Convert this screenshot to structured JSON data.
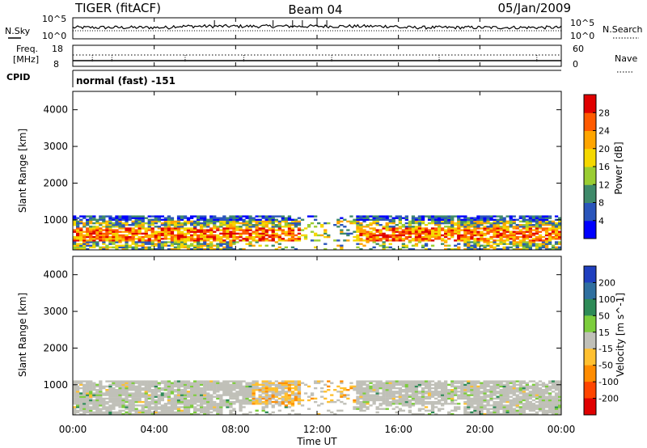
{
  "header": {
    "station": "TIGER (fitACF)",
    "beam": "Beam 04",
    "date": "05/Jan/2009"
  },
  "noise_panel": {
    "left_label": "N.Sky",
    "right_label": "N.Search",
    "left_ticks": [
      "10^5",
      "10^0"
    ],
    "right_ticks": [
      "10^5",
      "10^0"
    ]
  },
  "freq_panel": {
    "left_label_line1": "Freq.",
    "left_label_line2": "[MHz]",
    "right_label": "Nave",
    "left_ticks": [
      "18",
      "8"
    ],
    "right_ticks": [
      "60",
      "0"
    ]
  },
  "cpid": {
    "label": "CPID",
    "mode": "normal (fast) -151"
  },
  "chart_data": [
    {
      "type": "heatmap",
      "quantity": "Power",
      "ylabel": "Slant Range [km]",
      "ylim": [
        180,
        4500
      ],
      "yticks": [
        "1000",
        "2000",
        "3000",
        "4000"
      ],
      "x_range": [
        "00:00",
        "24:00"
      ],
      "colorbar_label": "Power [dB]",
      "colorbar_ticks": [
        "4",
        "8",
        "12",
        "16",
        "20",
        "24",
        "28"
      ],
      "colorbar_range": [
        0,
        32
      ],
      "colorbar_colors": [
        "#0000ff",
        "#2a55bb",
        "#3f8a6a",
        "#9acd32",
        "#f5d800",
        "#ffa500",
        "#ff5a00",
        "#e00000"
      ],
      "scatter_range_km": [
        180,
        1120
      ],
      "strong_echo_band_km": [
        400,
        800
      ]
    },
    {
      "type": "heatmap",
      "quantity": "Velocity",
      "ylabel": "Slant Range [km]",
      "ylim": [
        180,
        4500
      ],
      "yticks": [
        "1000",
        "2000",
        "3000",
        "4000"
      ],
      "x_range": [
        "00:00",
        "24:00"
      ],
      "colorbar_label": "Velocity [m s^-1]",
      "colorbar_ticks": [
        "200",
        "100",
        "50",
        "15",
        "-15",
        "-50",
        "-100",
        "-200"
      ],
      "colorbar_colors": [
        "#1f3fbf",
        "#2f6f9f",
        "#2e8b57",
        "#7ccd3c",
        "#c0c0b8",
        "#ffc030",
        "#ff8c00",
        "#ff4500",
        "#e00000"
      ],
      "scatter_range_km": [
        180,
        1120
      ]
    }
  ],
  "x_axis": {
    "label": "Time UT",
    "ticks": [
      "00:00",
      "04:00",
      "08:00",
      "12:00",
      "16:00",
      "20:00",
      "00:00"
    ],
    "tick_hours": [
      0,
      4,
      8,
      12,
      16,
      20,
      24
    ]
  }
}
